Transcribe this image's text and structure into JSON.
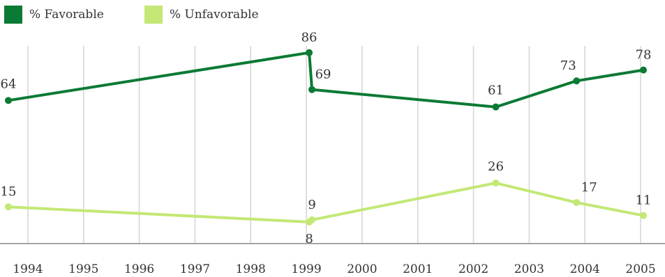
{
  "chart_data": {
    "type": "line",
    "x_ticks": [
      "1994",
      "1995",
      "1996",
      "1997",
      "1998",
      "1999",
      "2000",
      "2001",
      "2002",
      "2003",
      "2004",
      "2005"
    ],
    "xlim": [
      1993.6,
      2005.2
    ],
    "ylim": [
      0,
      100
    ],
    "grid": "vertical",
    "legend_position": "top-left",
    "series": [
      {
        "name": "% Favorable",
        "color": "#0b7a34",
        "points": [
          {
            "x": 1993.65,
            "y": 64,
            "label": "64"
          },
          {
            "x": 1999.05,
            "y": 86,
            "label": "86"
          },
          {
            "x": 1999.1,
            "y": 69,
            "label": "69"
          },
          {
            "x": 2002.4,
            "y": 61,
            "label": "61"
          },
          {
            "x": 2003.85,
            "y": 73,
            "label": "73"
          },
          {
            "x": 2005.05,
            "y": 78,
            "label": "78"
          }
        ]
      },
      {
        "name": "% Unfavorable",
        "color": "#c3e875",
        "points": [
          {
            "x": 1993.65,
            "y": 15,
            "label": "15"
          },
          {
            "x": 1999.05,
            "y": 8,
            "label": "8"
          },
          {
            "x": 1999.1,
            "y": 9,
            "label": "9"
          },
          {
            "x": 2002.4,
            "y": 26,
            "label": "26"
          },
          {
            "x": 2003.85,
            "y": 17,
            "label": "17"
          },
          {
            "x": 2005.05,
            "y": 11,
            "label": "11"
          }
        ]
      }
    ]
  }
}
